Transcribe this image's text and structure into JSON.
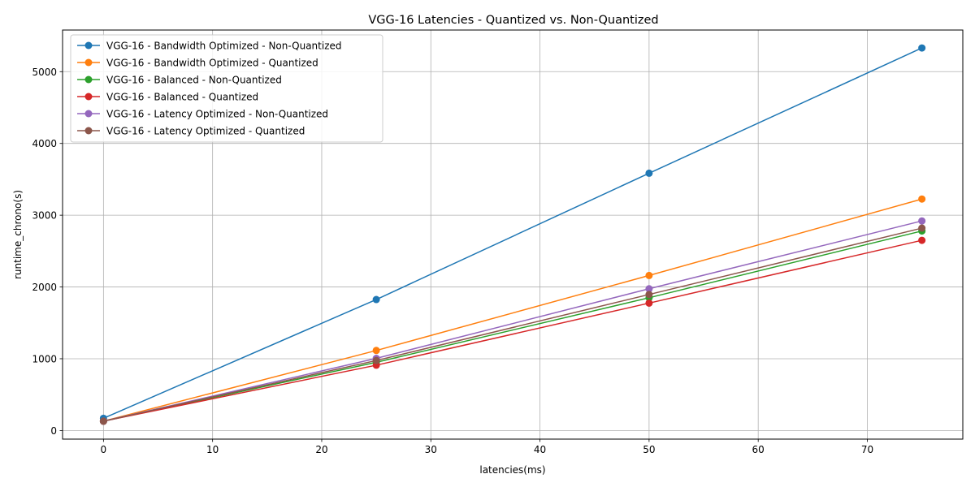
{
  "chart_data": {
    "type": "line",
    "title": "VGG-16 Latencies - Quantized vs. Non-Quantized",
    "xlabel": "latencies(ms)",
    "ylabel": "runtime_chrono(s)",
    "xlim": [
      -3.75,
      78.75
    ],
    "ylim": [
      -120,
      5580
    ],
    "x_ticks": [
      0,
      10,
      20,
      30,
      40,
      50,
      60,
      70
    ],
    "y_ticks": [
      0,
      1000,
      2000,
      3000,
      4000,
      5000
    ],
    "grid": true,
    "legend_position": "upper-left",
    "x": [
      0,
      25,
      50,
      75
    ],
    "series": [
      {
        "name": "VGG-16 - Bandwidth Optimized - Non-Quantized",
        "color": "#1f77b4",
        "values": [
          170,
          1825,
          3585,
          5330
        ]
      },
      {
        "name": "VGG-16 - Bandwidth Optimized - Quantized",
        "color": "#ff7f0e",
        "values": [
          130,
          1115,
          2160,
          3225
        ]
      },
      {
        "name": "VGG-16 - Balanced - Non-Quantized",
        "color": "#2ca02c",
        "values": [
          130,
          950,
          1850,
          2780
        ]
      },
      {
        "name": "VGG-16 - Balanced - Quantized",
        "color": "#d62728",
        "values": [
          130,
          910,
          1775,
          2650
        ]
      },
      {
        "name": "VGG-16 - Latency Optimized - Non-Quantized",
        "color": "#9467bd",
        "values": [
          130,
          1005,
          1975,
          2920
        ]
      },
      {
        "name": "VGG-16 - Latency Optimized - Quantized",
        "color": "#8c564b",
        "values": [
          130,
          975,
          1895,
          2820
        ]
      }
    ]
  }
}
